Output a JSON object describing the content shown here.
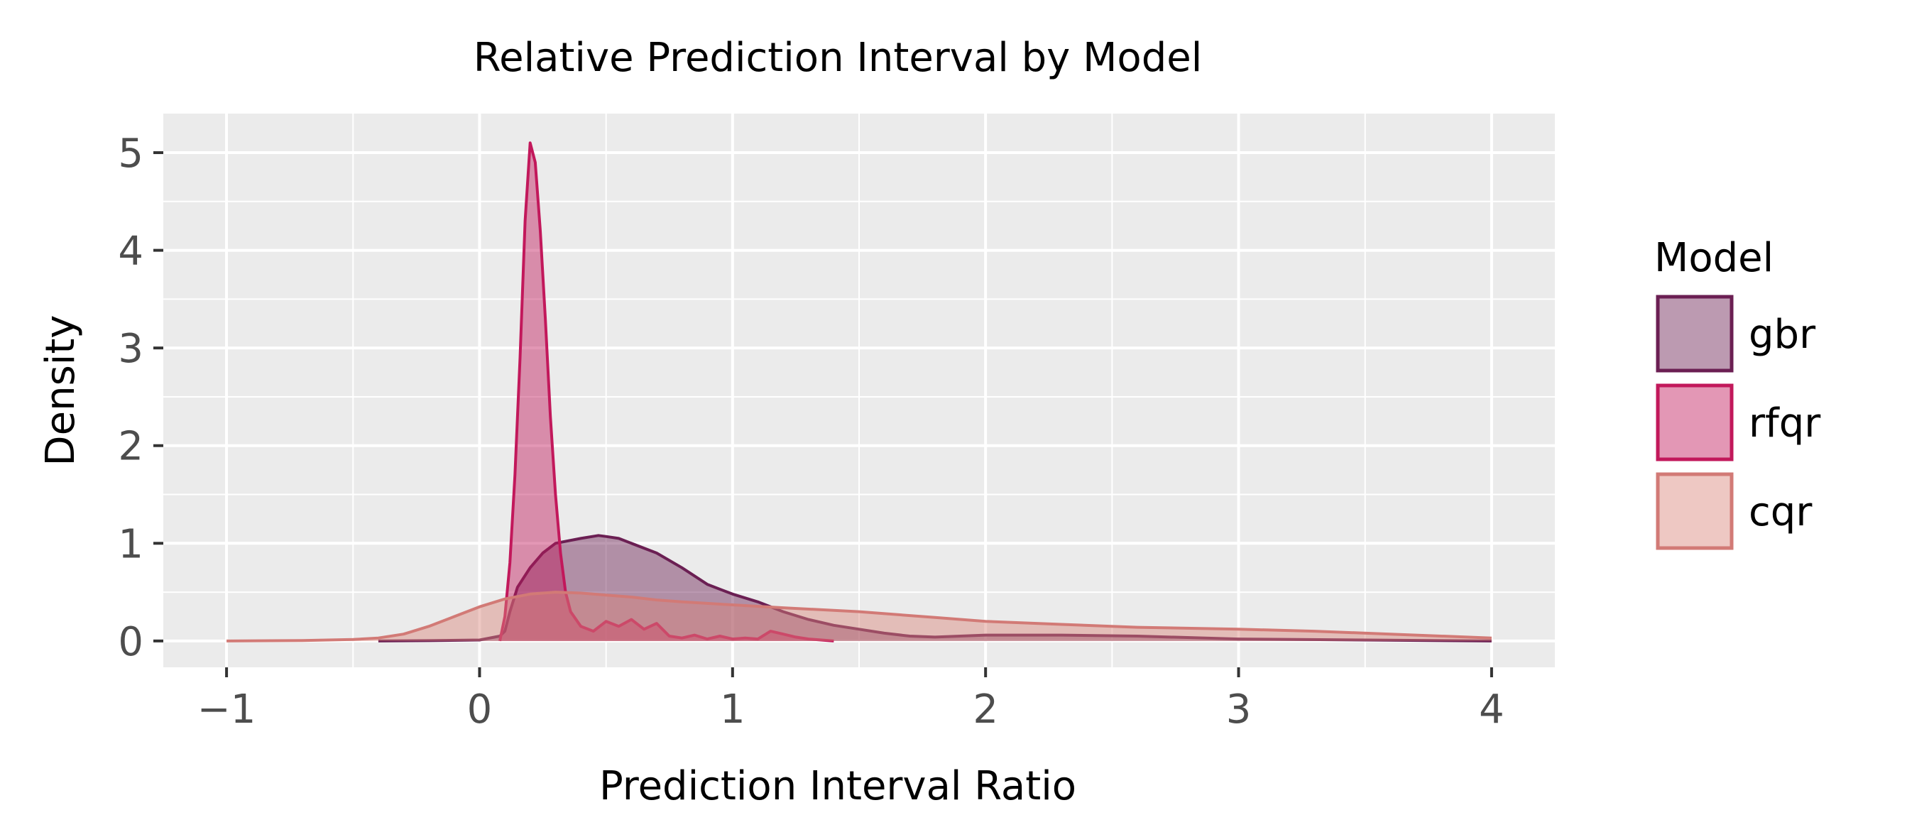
{
  "chart_data": {
    "type": "area",
    "subtype": "density",
    "title": "Relative Prediction Interval by Model",
    "xlabel": "Prediction Interval Ratio",
    "ylabel": "Density",
    "xlim": [
      -1.25,
      4.25
    ],
    "ylim": [
      -0.27,
      5.4
    ],
    "x_ticks": [
      -1,
      0,
      1,
      2,
      3,
      4
    ],
    "x_tick_labels": [
      "−1",
      "0",
      "1",
      "2",
      "3",
      "4"
    ],
    "y_ticks": [
      0,
      1,
      2,
      3,
      4,
      5
    ],
    "y_tick_labels": [
      "0",
      "1",
      "2",
      "3",
      "4",
      "5"
    ],
    "grid": true,
    "legend": {
      "title": "Model",
      "position": "right"
    },
    "series": [
      {
        "name": "gbr",
        "fill": "#6b1f53",
        "stroke": "#6b1f53",
        "points": [
          [
            -0.4,
            0.0
          ],
          [
            -0.2,
            0.003
          ],
          [
            0.0,
            0.01
          ],
          [
            0.08,
            0.05
          ],
          [
            0.1,
            0.1
          ],
          [
            0.12,
            0.3
          ],
          [
            0.15,
            0.55
          ],
          [
            0.2,
            0.75
          ],
          [
            0.25,
            0.9
          ],
          [
            0.3,
            1.0
          ],
          [
            0.4,
            1.05
          ],
          [
            0.47,
            1.08
          ],
          [
            0.5,
            1.07
          ],
          [
            0.55,
            1.05
          ],
          [
            0.6,
            1.0
          ],
          [
            0.7,
            0.9
          ],
          [
            0.8,
            0.75
          ],
          [
            0.9,
            0.58
          ],
          [
            1.0,
            0.48
          ],
          [
            1.1,
            0.4
          ],
          [
            1.2,
            0.3
          ],
          [
            1.3,
            0.22
          ],
          [
            1.4,
            0.16
          ],
          [
            1.5,
            0.12
          ],
          [
            1.6,
            0.08
          ],
          [
            1.7,
            0.05
          ],
          [
            1.8,
            0.04
          ],
          [
            2.0,
            0.06
          ],
          [
            2.3,
            0.06
          ],
          [
            2.6,
            0.05
          ],
          [
            3.0,
            0.02
          ],
          [
            3.5,
            0.01
          ],
          [
            4.0,
            0.0
          ]
        ]
      },
      {
        "name": "rfqr",
        "fill": "#c2185b",
        "stroke": "#c2185b",
        "points": [
          [
            0.08,
            0.0
          ],
          [
            0.1,
            0.25
          ],
          [
            0.12,
            0.8
          ],
          [
            0.14,
            1.7
          ],
          [
            0.16,
            2.9
          ],
          [
            0.18,
            4.3
          ],
          [
            0.2,
            5.1
          ],
          [
            0.22,
            4.9
          ],
          [
            0.24,
            4.2
          ],
          [
            0.26,
            3.3
          ],
          [
            0.28,
            2.3
          ],
          [
            0.3,
            1.5
          ],
          [
            0.32,
            0.9
          ],
          [
            0.34,
            0.5
          ],
          [
            0.36,
            0.3
          ],
          [
            0.4,
            0.15
          ],
          [
            0.45,
            0.1
          ],
          [
            0.5,
            0.2
          ],
          [
            0.55,
            0.15
          ],
          [
            0.6,
            0.22
          ],
          [
            0.65,
            0.12
          ],
          [
            0.7,
            0.18
          ],
          [
            0.75,
            0.05
          ],
          [
            0.8,
            0.03
          ],
          [
            0.85,
            0.06
          ],
          [
            0.9,
            0.02
          ],
          [
            0.95,
            0.05
          ],
          [
            1.0,
            0.02
          ],
          [
            1.05,
            0.03
          ],
          [
            1.1,
            0.02
          ],
          [
            1.15,
            0.1
          ],
          [
            1.2,
            0.07
          ],
          [
            1.25,
            0.04
          ],
          [
            1.3,
            0.02
          ],
          [
            1.4,
            0.0
          ]
        ]
      },
      {
        "name": "cqr",
        "fill": "#d9857a",
        "stroke": "#d27a76",
        "points": [
          [
            -1.0,
            0.0
          ],
          [
            -0.7,
            0.005
          ],
          [
            -0.5,
            0.015
          ],
          [
            -0.4,
            0.03
          ],
          [
            -0.3,
            0.07
          ],
          [
            -0.2,
            0.15
          ],
          [
            -0.1,
            0.25
          ],
          [
            0.0,
            0.35
          ],
          [
            0.1,
            0.43
          ],
          [
            0.2,
            0.48
          ],
          [
            0.3,
            0.5
          ],
          [
            0.4,
            0.49
          ],
          [
            0.5,
            0.47
          ],
          [
            0.6,
            0.45
          ],
          [
            0.7,
            0.42
          ],
          [
            0.8,
            0.4
          ],
          [
            1.0,
            0.37
          ],
          [
            1.2,
            0.34
          ],
          [
            1.5,
            0.3
          ],
          [
            1.8,
            0.24
          ],
          [
            2.0,
            0.2
          ],
          [
            2.3,
            0.17
          ],
          [
            2.6,
            0.14
          ],
          [
            3.0,
            0.12
          ],
          [
            3.3,
            0.1
          ],
          [
            3.6,
            0.07
          ],
          [
            4.0,
            0.03
          ]
        ]
      }
    ]
  }
}
